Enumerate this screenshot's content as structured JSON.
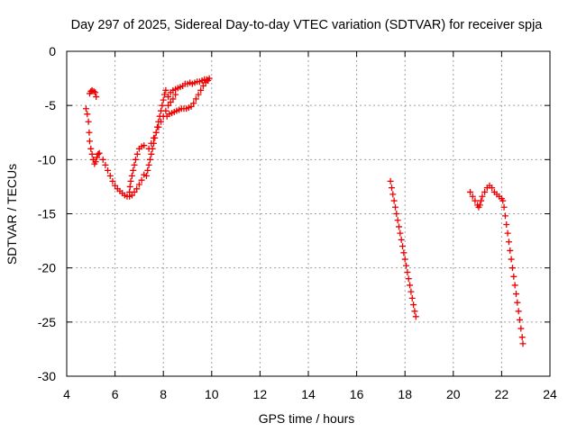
{
  "chart_data": {
    "type": "scatter",
    "title": "Day 297 of 2025, Sidereal Day-to-day VTEC variation (SDTVAR) for receiver spja",
    "xlabel": "GPS time / hours",
    "ylabel": "SDTVAR / TECUs",
    "xlim": [
      4,
      24
    ],
    "ylim": [
      -30,
      0
    ],
    "x_ticks": [
      "4",
      "6",
      "8",
      "10",
      "12",
      "14",
      "16",
      "18",
      "20",
      "22",
      "24"
    ],
    "y_ticks": [
      "0",
      "-5",
      "-10",
      "-15",
      "-20",
      "-25",
      "-30"
    ],
    "grid": true,
    "marker": "plus",
    "color": "#ee0000",
    "series": [
      {
        "points": [
          [
            4.8,
            -5.3
          ],
          [
            4.85,
            -5.8
          ],
          [
            4.9,
            -6.5
          ],
          [
            4.93,
            -7.5
          ],
          [
            4.95,
            -8.3
          ],
          [
            5.0,
            -9.0
          ],
          [
            5.05,
            -9.5
          ],
          [
            5.1,
            -10.0
          ],
          [
            5.15,
            -10.4
          ],
          [
            5.2,
            -10.2
          ],
          [
            5.25,
            -9.8
          ],
          [
            5.3,
            -9.5
          ],
          [
            5.35,
            -9.4
          ],
          [
            4.95,
            -3.9
          ],
          [
            5.0,
            -3.7
          ],
          [
            5.05,
            -3.6
          ],
          [
            5.12,
            -3.7
          ],
          [
            5.18,
            -3.8
          ],
          [
            5.22,
            -4.2
          ],
          [
            5.5,
            -10.0
          ],
          [
            5.6,
            -10.5
          ],
          [
            5.7,
            -11.0
          ],
          [
            5.8,
            -11.5
          ],
          [
            5.9,
            -12.0
          ],
          [
            6.0,
            -12.4
          ],
          [
            6.1,
            -12.7
          ],
          [
            6.2,
            -12.9
          ],
          [
            6.3,
            -13.1
          ],
          [
            6.4,
            -13.3
          ],
          [
            6.5,
            -13.4
          ],
          [
            6.6,
            -13.4
          ],
          [
            6.7,
            -13.3
          ],
          [
            6.8,
            -13.0
          ],
          [
            6.9,
            -12.7
          ],
          [
            7.0,
            -12.3
          ],
          [
            7.1,
            -11.9
          ],
          [
            7.2,
            -11.4
          ],
          [
            6.6,
            -13.0
          ],
          [
            6.62,
            -12.5
          ],
          [
            6.65,
            -12.0
          ],
          [
            6.7,
            -11.5
          ],
          [
            6.75,
            -11.0
          ],
          [
            6.8,
            -10.5
          ],
          [
            6.85,
            -10.0
          ],
          [
            6.92,
            -9.5
          ],
          [
            7.0,
            -9.0
          ],
          [
            7.1,
            -8.8
          ],
          [
            7.2,
            -8.7
          ],
          [
            7.3,
            -11.5
          ],
          [
            7.35,
            -11.0
          ],
          [
            7.4,
            -10.5
          ],
          [
            7.45,
            -10.0
          ],
          [
            7.5,
            -9.5
          ],
          [
            7.55,
            -9.0
          ],
          [
            7.6,
            -8.5
          ],
          [
            7.65,
            -8.0
          ],
          [
            7.7,
            -7.5
          ],
          [
            7.75,
            -7.0
          ],
          [
            7.8,
            -6.5
          ],
          [
            7.85,
            -6.0
          ],
          [
            7.9,
            -5.5
          ],
          [
            7.95,
            -5.0
          ],
          [
            8.0,
            -4.5
          ],
          [
            8.05,
            -4.0
          ],
          [
            8.1,
            -3.6
          ],
          [
            7.4,
            -9.0
          ],
          [
            7.5,
            -8.5
          ],
          [
            7.6,
            -8.0
          ],
          [
            7.7,
            -7.5
          ],
          [
            7.8,
            -7.0
          ],
          [
            7.9,
            -6.5
          ],
          [
            8.0,
            -6.0
          ],
          [
            8.1,
            -5.5
          ],
          [
            8.2,
            -5.0
          ],
          [
            8.3,
            -4.7
          ],
          [
            8.4,
            -4.4
          ],
          [
            8.5,
            -4.0
          ],
          [
            8.15,
            -6.0
          ],
          [
            8.25,
            -5.8
          ],
          [
            8.35,
            -5.7
          ],
          [
            8.45,
            -5.6
          ],
          [
            8.55,
            -5.5
          ],
          [
            8.65,
            -5.4
          ],
          [
            8.75,
            -5.3
          ],
          [
            8.85,
            -5.3
          ],
          [
            8.95,
            -5.3
          ],
          [
            9.05,
            -5.2
          ],
          [
            9.15,
            -5.1
          ],
          [
            9.25,
            -4.8
          ],
          [
            9.35,
            -4.4
          ],
          [
            9.45,
            -4.0
          ],
          [
            9.55,
            -3.6
          ],
          [
            9.65,
            -3.2
          ],
          [
            9.75,
            -2.9
          ],
          [
            9.85,
            -2.7
          ],
          [
            8.2,
            -4.2
          ],
          [
            8.3,
            -3.8
          ],
          [
            8.4,
            -3.6
          ],
          [
            8.5,
            -3.5
          ],
          [
            8.6,
            -3.4
          ],
          [
            8.7,
            -3.3
          ],
          [
            8.8,
            -3.2
          ],
          [
            8.9,
            -3.0
          ],
          [
            9.0,
            -3.0
          ],
          [
            9.1,
            -2.9
          ],
          [
            9.2,
            -3.0
          ],
          [
            9.3,
            -2.9
          ],
          [
            9.4,
            -2.8
          ],
          [
            9.5,
            -2.8
          ],
          [
            9.6,
            -2.7
          ],
          [
            9.7,
            -2.6
          ],
          [
            9.8,
            -2.6
          ],
          [
            9.9,
            -2.5
          ]
        ]
      },
      {
        "points": [
          [
            17.4,
            -12.0
          ],
          [
            17.45,
            -12.6
          ],
          [
            17.5,
            -13.2
          ],
          [
            17.55,
            -13.8
          ],
          [
            17.6,
            -14.4
          ],
          [
            17.65,
            -15.0
          ],
          [
            17.7,
            -15.6
          ],
          [
            17.75,
            -16.2
          ],
          [
            17.8,
            -16.8
          ],
          [
            17.85,
            -17.4
          ],
          [
            17.9,
            -18.0
          ],
          [
            17.95,
            -18.6
          ],
          [
            18.0,
            -19.2
          ],
          [
            18.05,
            -19.8
          ],
          [
            18.1,
            -20.4
          ],
          [
            18.15,
            -21.0
          ],
          [
            18.2,
            -21.6
          ],
          [
            18.25,
            -22.2
          ],
          [
            18.3,
            -22.8
          ],
          [
            18.35,
            -23.4
          ],
          [
            18.4,
            -24.0
          ],
          [
            18.45,
            -24.5
          ]
        ]
      },
      {
        "points": [
          [
            20.7,
            -13.0
          ],
          [
            20.8,
            -13.4
          ],
          [
            20.9,
            -13.8
          ],
          [
            21.0,
            -14.2
          ],
          [
            21.05,
            -14.4
          ],
          [
            21.1,
            -14.2
          ],
          [
            21.15,
            -13.8
          ],
          [
            21.2,
            -13.4
          ],
          [
            21.3,
            -13.0
          ],
          [
            21.4,
            -12.6
          ],
          [
            21.5,
            -12.4
          ],
          [
            21.6,
            -12.6
          ],
          [
            21.7,
            -13.0
          ],
          [
            21.8,
            -13.2
          ],
          [
            21.9,
            -13.4
          ],
          [
            22.0,
            -13.6
          ],
          [
            22.05,
            -13.8
          ],
          [
            22.1,
            -14.4
          ],
          [
            22.15,
            -15.2
          ],
          [
            22.2,
            -16.0
          ],
          [
            22.25,
            -16.8
          ],
          [
            22.3,
            -17.6
          ],
          [
            22.35,
            -18.4
          ],
          [
            22.4,
            -19.2
          ],
          [
            22.45,
            -20.0
          ],
          [
            22.5,
            -20.8
          ],
          [
            22.55,
            -21.6
          ],
          [
            22.6,
            -22.4
          ],
          [
            22.65,
            -23.2
          ],
          [
            22.7,
            -24.0
          ],
          [
            22.75,
            -24.8
          ],
          [
            22.8,
            -25.6
          ],
          [
            22.85,
            -26.4
          ],
          [
            22.88,
            -27.0
          ]
        ]
      }
    ]
  }
}
